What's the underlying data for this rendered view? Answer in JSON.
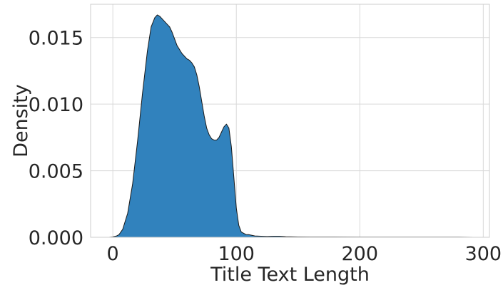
{
  "chart_data": {
    "type": "area",
    "title": "",
    "xlabel": "Title Text Length",
    "ylabel": "Density",
    "xlim": [
      -18,
      305
    ],
    "ylim": [
      0,
      0.0175
    ],
    "x_ticks": [
      0,
      100,
      200,
      300
    ],
    "x_tick_labels": [
      "0",
      "100",
      "200",
      "300"
    ],
    "y_ticks": [
      0.0,
      0.005,
      0.01,
      0.015
    ],
    "y_tick_labels": [
      "0.000",
      "0.005",
      "0.010",
      "0.015"
    ],
    "grid": true,
    "legend": "none",
    "fill_color": "#3182bd",
    "line_color": "#1a1a1a",
    "series": [
      {
        "x": [
          -3,
          0,
          3,
          5,
          8,
          12,
          16,
          20,
          24,
          28,
          31,
          34,
          36,
          38,
          40,
          42,
          44,
          46,
          48,
          50,
          52,
          54,
          56,
          58,
          60,
          62,
          64,
          66,
          68,
          70,
          72,
          74,
          76,
          78,
          80,
          82,
          84,
          86,
          88,
          90,
          92,
          94,
          96,
          98,
          100,
          102,
          104,
          106,
          108,
          110,
          115,
          120,
          125,
          130,
          135,
          140,
          150,
          160,
          180,
          200,
          220,
          240,
          260,
          280,
          292
        ],
        "y": [
          0.0,
          3e-05,
          0.0001,
          0.0002,
          0.0006,
          0.0018,
          0.004,
          0.0072,
          0.0108,
          0.014,
          0.0158,
          0.0165,
          0.0167,
          0.0166,
          0.0164,
          0.0162,
          0.016,
          0.0158,
          0.0154,
          0.0149,
          0.0144,
          0.0141,
          0.0138,
          0.0136,
          0.0134,
          0.0133,
          0.0131,
          0.0128,
          0.0122,
          0.0113,
          0.0102,
          0.0091,
          0.0082,
          0.0077,
          0.0074,
          0.0073,
          0.0073,
          0.0075,
          0.0079,
          0.0083,
          0.0085,
          0.0082,
          0.0068,
          0.0045,
          0.0022,
          0.0009,
          0.0004,
          0.0003,
          0.0002,
          0.0002,
          0.0001,
          8e-05,
          6e-05,
          8e-05,
          8e-05,
          5e-05,
          3e-05,
          2e-05,
          2e-05,
          1e-05,
          1e-05,
          1e-05,
          1e-05,
          1e-05,
          0.0
        ]
      }
    ]
  }
}
